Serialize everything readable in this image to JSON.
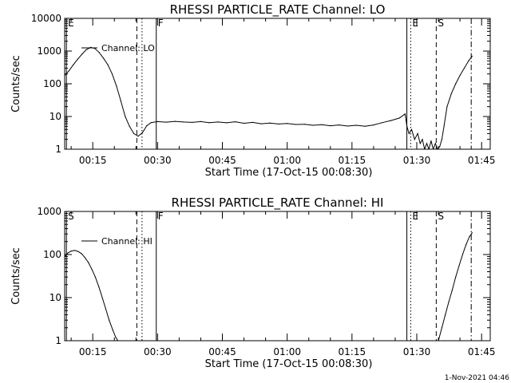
{
  "footer": {
    "timestamp": "1-Nov-2021 04:46"
  },
  "chart_data": [
    {
      "type": "line",
      "title": "RHESSI PARTICLE_RATE Channel: LO",
      "xlabel": "Start Time (17-Oct-15 00:08:30)",
      "ylabel": "Counts/sec",
      "yscale": "log",
      "ylim": [
        1,
        10000
      ],
      "xlim_minutes": [
        8.5,
        107
      ],
      "x_ticks": [
        {
          "t": 15,
          "label": "00:15"
        },
        {
          "t": 30,
          "label": "00:30"
        },
        {
          "t": 45,
          "label": "00:45"
        },
        {
          "t": 60,
          "label": "01:00"
        },
        {
          "t": 75,
          "label": "01:15"
        },
        {
          "t": 90,
          "label": "01:30"
        },
        {
          "t": 105,
          "label": "01:45"
        }
      ],
      "y_ticks": [
        {
          "v": 1,
          "label": "1"
        },
        {
          "v": 10,
          "label": "10"
        },
        {
          "v": 100,
          "label": "100"
        },
        {
          "v": 1000,
          "label": "1000"
        },
        {
          "v": 10000,
          "label": "10000"
        }
      ],
      "legend": {
        "label": "Channel: LO",
        "placement": "top-left"
      },
      "markers": [
        {
          "t": 8.9,
          "style": "solid",
          "label": "E"
        },
        {
          "t": 25.2,
          "style": "dashed",
          "label": ""
        },
        {
          "t": 26.4,
          "style": "dotted",
          "label": ""
        },
        {
          "t": 29.7,
          "style": "solid",
          "label": "F"
        },
        {
          "t": 87.7,
          "style": "solid",
          "label": ""
        },
        {
          "t": 88.6,
          "style": "dotted",
          "label": "E"
        },
        {
          "t": 94.5,
          "style": "dashed",
          "label": "S"
        },
        {
          "t": 102.6,
          "style": "dashdot",
          "label": ""
        }
      ],
      "series": [
        {
          "x": [
            8.5,
            9.5,
            10.5,
            11.5,
            12.5,
            13.5,
            14.5,
            15.5,
            16.5,
            17.5,
            18.5,
            19.5,
            20.5,
            21.5,
            22.5,
            23.5,
            24.5,
            25.5,
            26.5,
            27.5,
            28.5,
            30,
            32,
            34,
            36,
            38,
            40,
            42,
            44,
            46,
            48,
            50,
            52,
            54,
            56,
            58,
            60,
            62,
            64,
            66,
            68,
            70,
            72,
            74,
            76,
            78,
            80,
            82,
            84,
            86,
            87.3,
            87.7,
            88.2,
            88.8,
            89.5,
            90.2,
            90.8,
            91.3,
            91.8,
            92.3,
            92.8,
            93.3,
            93.8,
            94.3,
            94.8,
            95.3,
            95.8,
            96.3,
            97,
            98,
            99,
            100,
            101,
            102,
            102.8
          ],
          "y": [
            180,
            250,
            380,
            560,
            800,
            1100,
            1300,
            1200,
            900,
            600,
            380,
            200,
            85,
            30,
            10,
            5,
            3,
            2.5,
            3.2,
            5.2,
            6.5,
            7,
            6.7,
            7.1,
            6.8,
            6.6,
            7,
            6.5,
            6.8,
            6.4,
            6.9,
            6.2,
            6.6,
            6,
            6.3,
            5.9,
            6.1,
            5.7,
            5.8,
            5.4,
            5.6,
            5.2,
            5.5,
            5.1,
            5.4,
            5,
            5.5,
            6.5,
            7.5,
            9,
            12,
            5,
            3,
            4,
            2,
            3,
            1.5,
            2,
            1,
            1.5,
            1,
            1.8,
            1,
            1.5,
            1,
            1.2,
            2,
            5,
            20,
            50,
            100,
            180,
            300,
            500,
            700
          ]
        }
      ]
    },
    {
      "type": "line",
      "title": "RHESSI PARTICLE_RATE Channel: HI",
      "xlabel": "Start Time (17-Oct-15 00:08:30)",
      "ylabel": "Counts/sec",
      "yscale": "log",
      "ylim": [
        1,
        1000
      ],
      "xlim_minutes": [
        8.5,
        107
      ],
      "x_ticks": [
        {
          "t": 15,
          "label": "00:15"
        },
        {
          "t": 30,
          "label": "00:30"
        },
        {
          "t": 45,
          "label": "00:45"
        },
        {
          "t": 60,
          "label": "01:00"
        },
        {
          "t": 75,
          "label": "01:15"
        },
        {
          "t": 90,
          "label": "01:30"
        },
        {
          "t": 105,
          "label": "01:45"
        }
      ],
      "y_ticks": [
        {
          "v": 1,
          "label": "1"
        },
        {
          "v": 10,
          "label": "10"
        },
        {
          "v": 100,
          "label": "100"
        },
        {
          "v": 1000,
          "label": "1000"
        }
      ],
      "legend": {
        "label": "Channel: HI",
        "placement": "top-left"
      },
      "markers": [
        {
          "t": 8.9,
          "style": "solid",
          "label": "S"
        },
        {
          "t": 25.2,
          "style": "dashed",
          "label": ""
        },
        {
          "t": 26.4,
          "style": "dotted",
          "label": ""
        },
        {
          "t": 29.7,
          "style": "solid",
          "label": "F"
        },
        {
          "t": 87.7,
          "style": "solid",
          "label": ""
        },
        {
          "t": 88.6,
          "style": "dotted",
          "label": "E"
        },
        {
          "t": 94.5,
          "style": "dashed",
          "label": "S"
        },
        {
          "t": 102.6,
          "style": "dashdot",
          "label": ""
        }
      ],
      "series": [
        {
          "x": [
            8.5,
            9.3,
            10,
            10.8,
            11.6,
            12.4,
            13.2,
            14,
            14.8,
            15.6,
            16.4,
            17.2,
            18,
            18.8,
            19.6,
            20.3,
            20.8,
            95,
            95.8,
            96.6,
            97.4,
            98.2,
            99,
            99.8,
            100.6,
            101.4,
            102.2,
            102.8
          ],
          "y": [
            90,
            110,
            120,
            125,
            118,
            105,
            85,
            65,
            45,
            30,
            18,
            10,
            5.5,
            3,
            1.8,
            1.2,
            1,
            1,
            2,
            4,
            8,
            15,
            30,
            55,
            100,
            170,
            260,
            320
          ]
        }
      ]
    }
  ]
}
